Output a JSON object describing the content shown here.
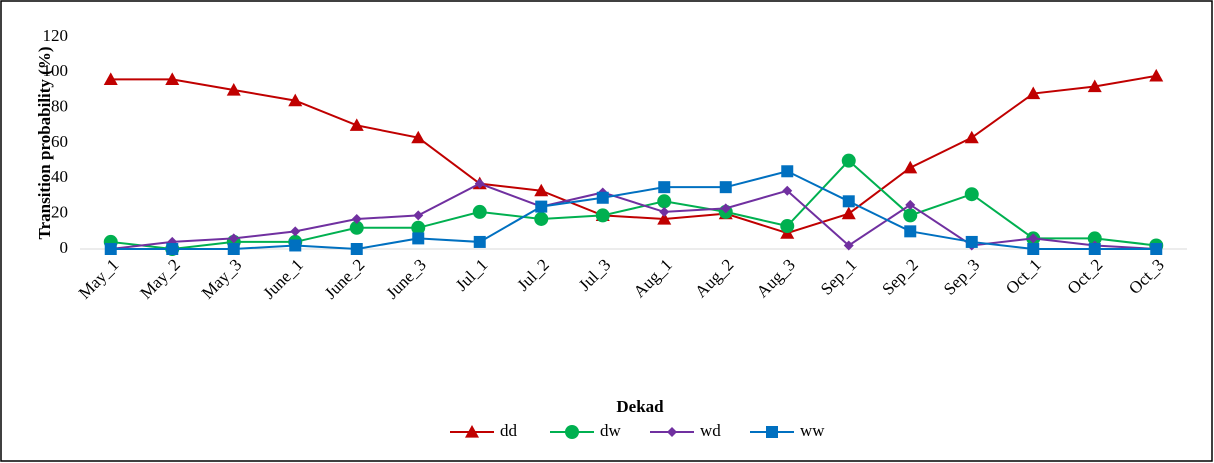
{
  "chart_data": {
    "type": "line",
    "x_label": "Dekad",
    "y_label": "Transition probability (%)",
    "categories": [
      "May_1",
      "May_2",
      "May_3",
      "June_1",
      "June_2",
      "June_3",
      "Jul_1",
      "Jul_2",
      "Jul_3",
      "Aug_1",
      "Aug_2",
      "Aug_3",
      "Sep_1",
      "Sep_2",
      "Sep_3",
      "Oct_1",
      "Oct_2",
      "Oct_3"
    ],
    "series": [
      {
        "name": "dd",
        "color": "#c00000",
        "marker": "triangle",
        "values": [
          96,
          96,
          90,
          84,
          70,
          63,
          37,
          33,
          19,
          17,
          20,
          9,
          20,
          46,
          63,
          88,
          92,
          98
        ]
      },
      {
        "name": "dw",
        "color": "#00b050",
        "marker": "circle",
        "values": [
          4,
          0,
          4,
          4,
          12,
          12,
          21,
          17,
          19,
          27,
          21,
          13,
          50,
          19,
          31,
          6,
          6,
          2
        ]
      },
      {
        "name": "wd",
        "color": "#7030a0",
        "marker": "diamond",
        "values": [
          0,
          4,
          6,
          10,
          17,
          19,
          37,
          24,
          32,
          21,
          23,
          33,
          2,
          25,
          2,
          6,
          2,
          0
        ]
      },
      {
        "name": "ww",
        "color": "#0070c0",
        "marker": "square",
        "values": [
          0,
          0,
          0,
          2,
          0,
          6,
          4,
          24,
          29,
          35,
          35,
          44,
          27,
          10,
          4,
          0,
          0,
          0
        ]
      }
    ],
    "ylim": [
      0,
      120
    ],
    "yticks": [
      0,
      20,
      40,
      60,
      80,
      100,
      120
    ],
    "grid": false,
    "legend": "bottom"
  }
}
